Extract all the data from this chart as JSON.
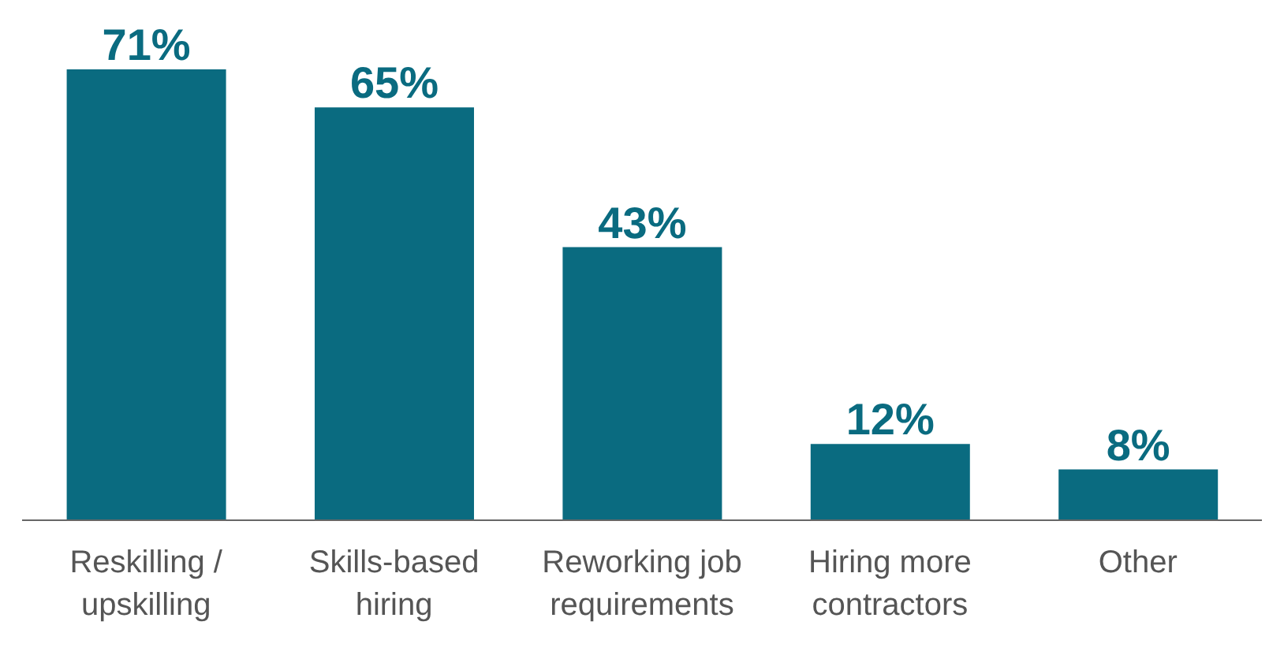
{
  "chart_data": {
    "type": "bar",
    "categories": [
      "Reskilling / upskilling",
      "Skills-based hiring",
      "Reworking job requirements",
      "Hiring more contractors",
      "Other"
    ],
    "values": [
      71,
      65,
      43,
      12,
      8
    ],
    "color": "#0a6b80",
    "data_labels": true,
    "value_labels": [
      "71%",
      "65%",
      "43%",
      "12%",
      "8%"
    ],
    "grid": false,
    "legend": false
  }
}
